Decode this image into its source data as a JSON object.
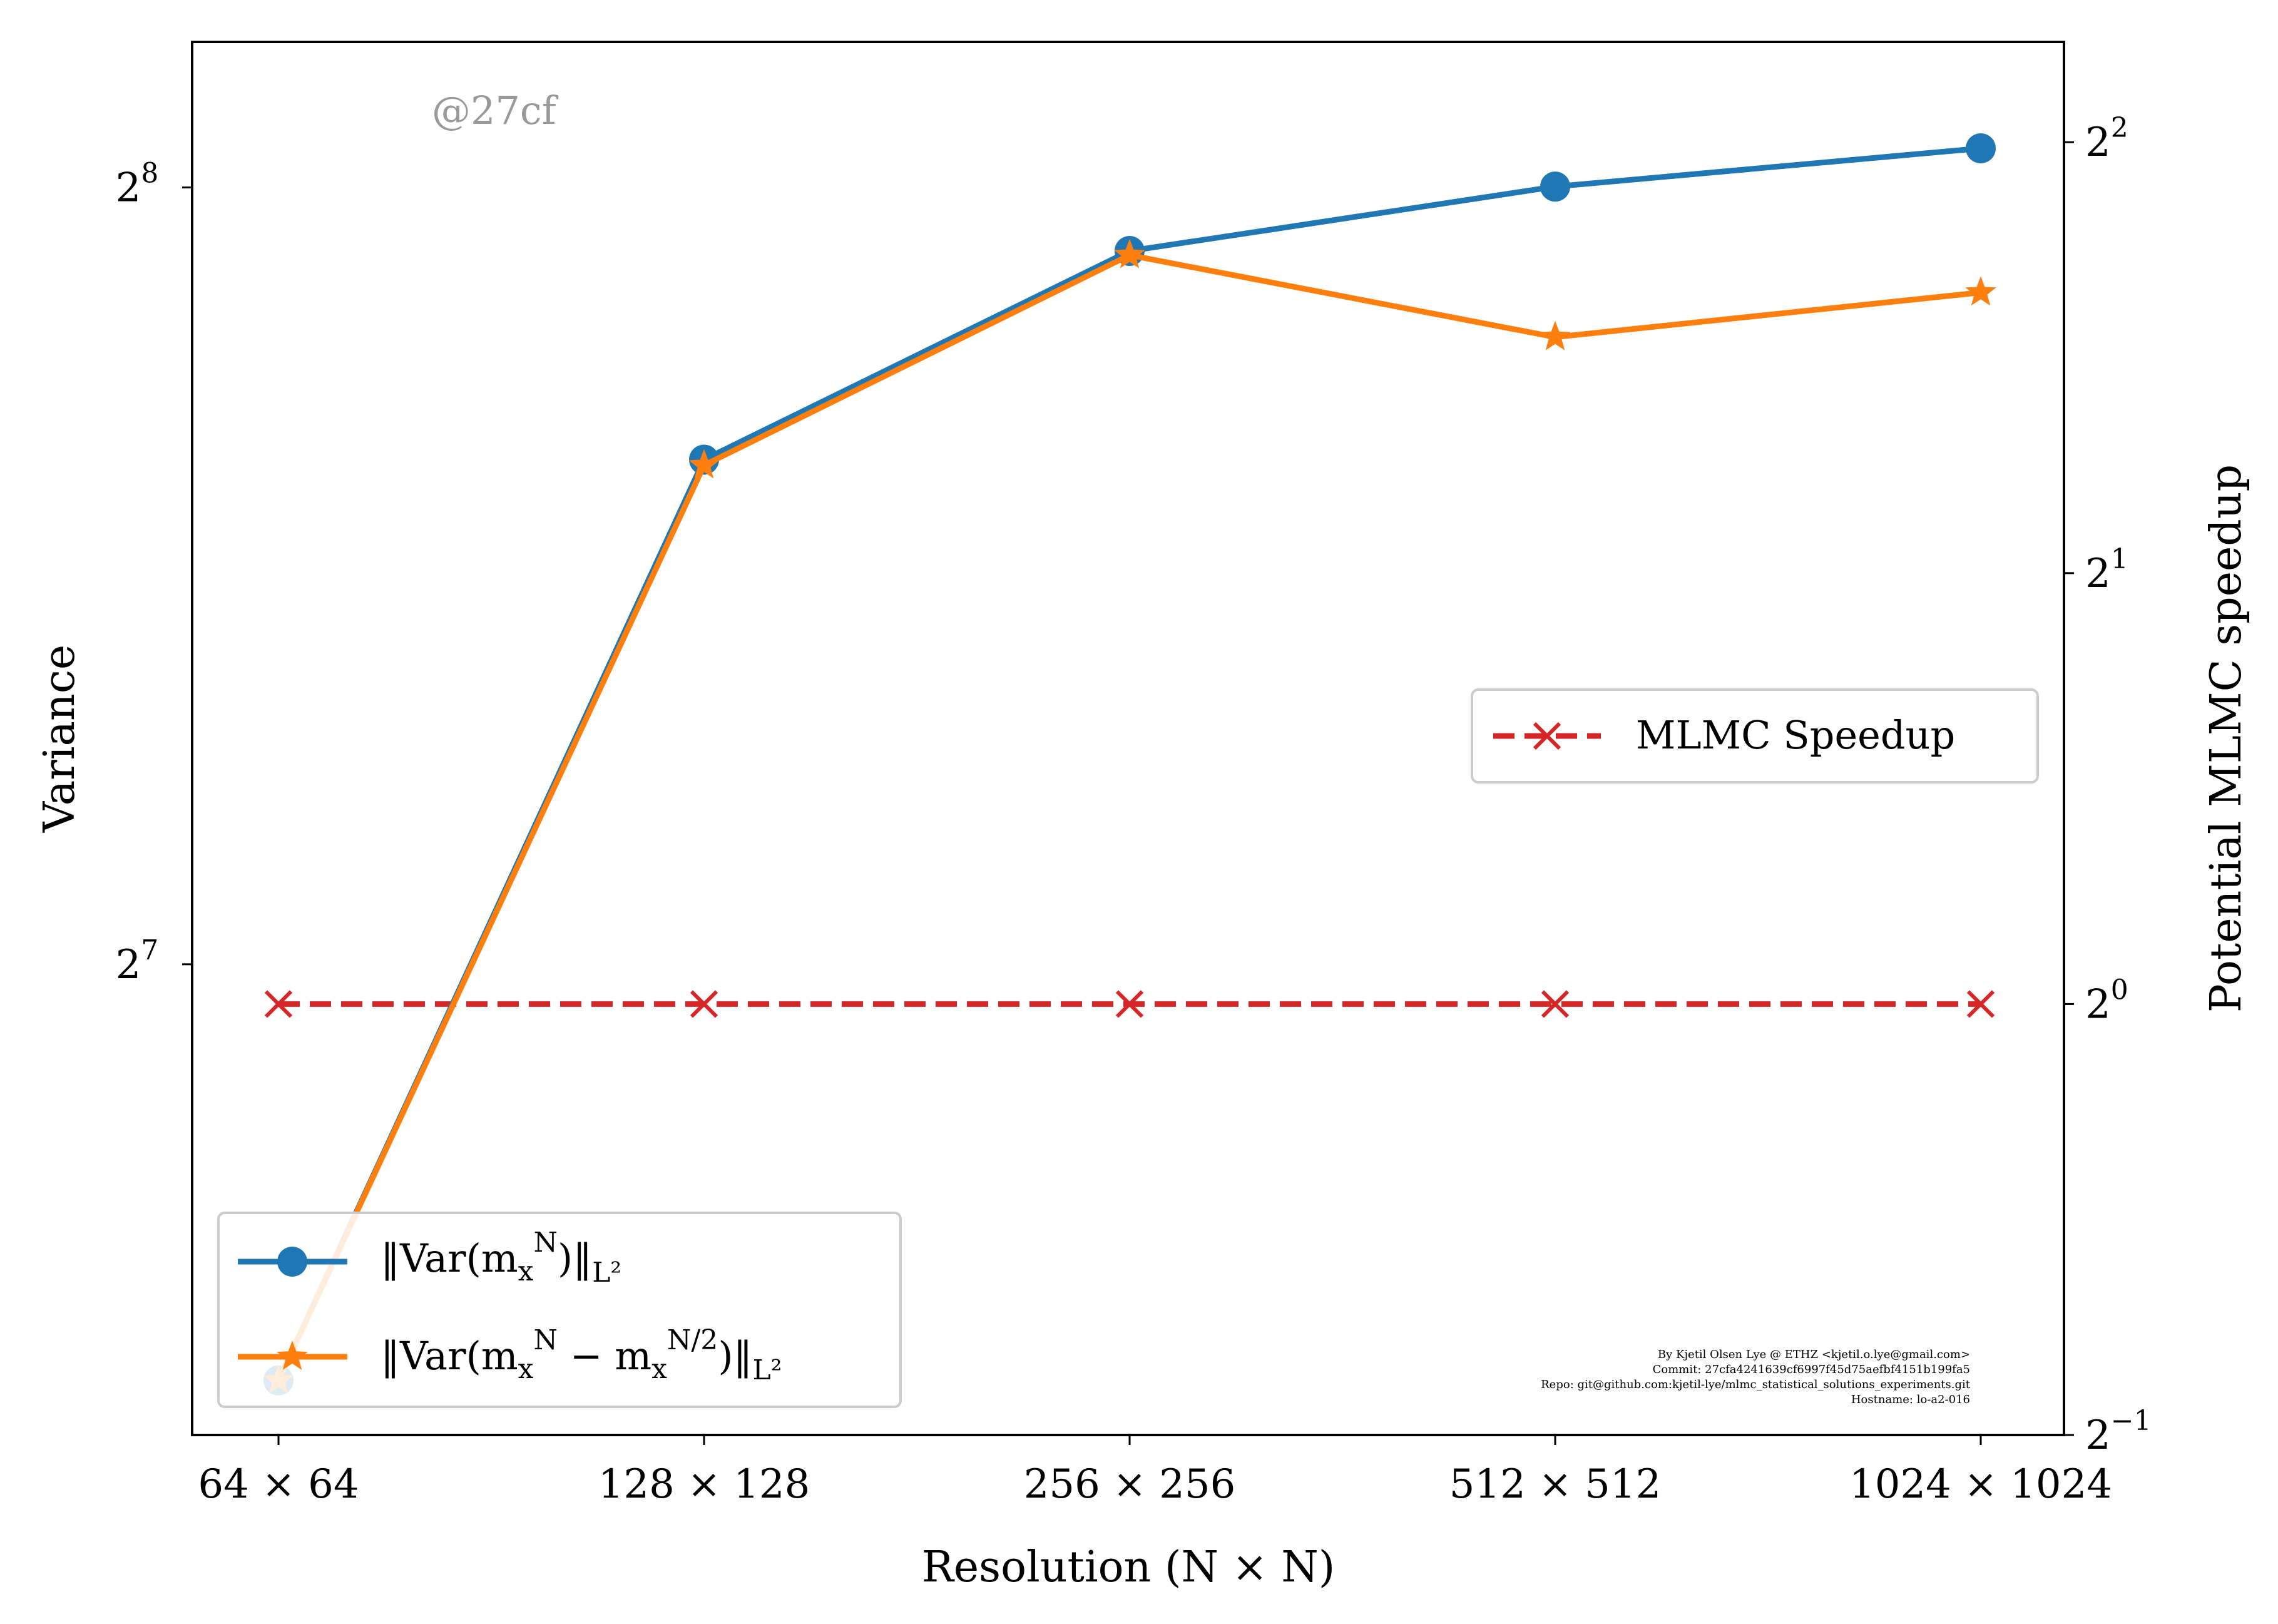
{
  "chart_data": {
    "type": "line",
    "categories": [
      "64 × 64",
      "128 × 128",
      "256 × 256",
      "512 × 512",
      "1024 × 1024"
    ],
    "xlabel": "Resolution (N × N)",
    "ylabel_left": "Variance",
    "ylabel_right": "Potential MLMC speedup",
    "left_axis": {
      "scale": "log2",
      "ylim": [
        84.1,
        291.5
      ],
      "ticks": [
        {
          "base": "2",
          "exp": "7",
          "value": 128
        },
        {
          "base": "2",
          "exp": "8",
          "value": 256
        }
      ]
    },
    "right_axis": {
      "scale": "log2",
      "ylim": [
        0.5,
        4.7
      ],
      "ticks": [
        {
          "base": "2",
          "exp": "−1",
          "value": 0.5
        },
        {
          "base": "2",
          "exp": "0",
          "value": 1
        },
        {
          "base": "2",
          "exp": "1",
          "value": 2
        },
        {
          "base": "2",
          "exp": "2",
          "value": 4
        }
      ]
    },
    "series": [
      {
        "name": "‖Var(m_x^N)‖_{L²}",
        "legend_main": "‖Var(m",
        "legend_sub": "x",
        "legend_sup": "N",
        "legend_tail": ")‖",
        "legend_norm": "L²",
        "axis": "left",
        "color": "#1f77b4",
        "marker": "circle",
        "style": "solid",
        "values": [
          88.3,
          200.8,
          241.9,
          256.2,
          265.1
        ]
      },
      {
        "name": "‖Var(m_x^N − m_x^{N/2})‖_{L²}",
        "legend_main": "‖Var(m",
        "legend_sub": "x",
        "legend_sup": "N",
        "legend_mid": " − m",
        "legend_sub2": "x",
        "legend_sup2": "N/2",
        "legend_tail": ")‖",
        "legend_norm": "L²",
        "axis": "left",
        "color": "#ff7f0e",
        "marker": "star",
        "style": "solid",
        "values": [
          88.3,
          199.8,
          241.0,
          224.0,
          233.1
        ]
      },
      {
        "name": "MLMC Speedup",
        "axis": "right",
        "color": "#d62728",
        "marker": "x",
        "style": "dashed",
        "values": [
          1.0,
          1.0,
          1.0,
          1.0,
          1.0
        ]
      }
    ],
    "legend_left_placement": "lower-left",
    "legend_right_placement": "center-right",
    "grid": false
  },
  "watermark": "@27cf",
  "credits": [
    "By Kjetil Olsen Lye @ ETHZ <kjetil.o.lye@gmail.com>",
    "Commit: 27cfa4241639cf6997f45d75aefbf4151b199fa5",
    "Repo: git@github.com:kjetil-lye/mlmc_statistical_solutions_experiments.git",
    "Hostname: lo-a2-016"
  ]
}
